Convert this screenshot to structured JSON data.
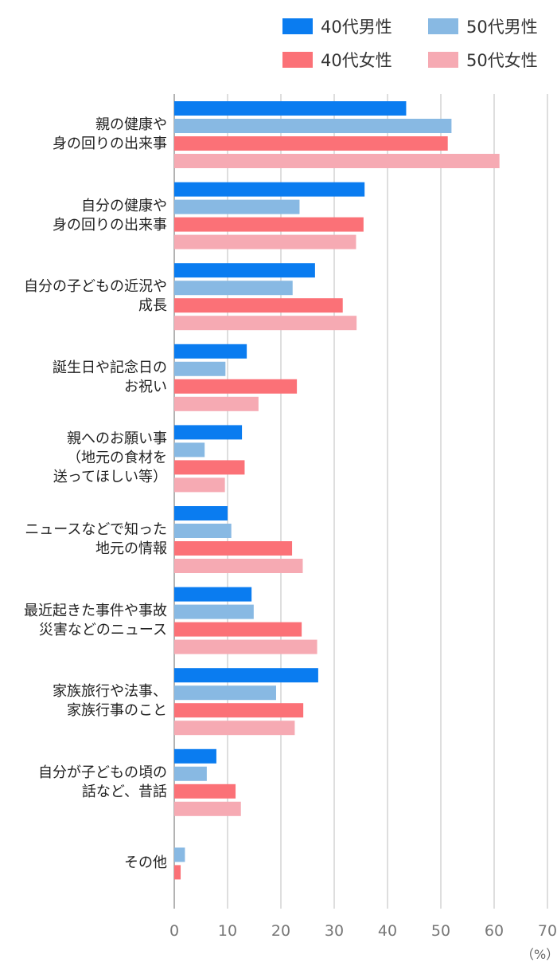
{
  "chart_data": {
    "type": "bar",
    "orientation": "horizontal",
    "categories": [
      [
        "親の健康や",
        "身の回りの出来事"
      ],
      [
        "自分の健康や",
        "身の回りの出来事"
      ],
      [
        "自分の子どもの近況や",
        "成長"
      ],
      [
        "誕生日や記念日の",
        "お祝い"
      ],
      [
        "親へのお願い事",
        "（地元の食材を",
        "送ってほしい等）"
      ],
      [
        "ニュースなどで知った",
        "地元の情報"
      ],
      [
        "最近起きた事件や事故",
        "災害などのニュース"
      ],
      [
        "家族旅行や法事、",
        "家族行事のこと"
      ],
      [
        "自分が子どもの頃の",
        "話など、昔話"
      ],
      [
        "その他"
      ]
    ],
    "series": [
      {
        "name": "40代男性",
        "color": "#0a7cf0",
        "values": [
          43.5,
          35.7,
          26.4,
          13.6,
          12.7,
          10.0,
          14.5,
          27.0,
          7.9,
          null
        ]
      },
      {
        "name": "50代男性",
        "color": "#88b9e3",
        "values": [
          52.0,
          23.5,
          22.2,
          9.6,
          5.7,
          10.7,
          14.9,
          19.1,
          6.1,
          2.0
        ]
      },
      {
        "name": "40代女性",
        "color": "#fb7177",
        "values": [
          51.3,
          35.5,
          31.6,
          23.0,
          13.2,
          22.1,
          23.9,
          24.2,
          11.5,
          1.2
        ]
      },
      {
        "name": "50代女性",
        "color": "#f6aab3",
        "values": [
          61.0,
          34.1,
          34.2,
          15.8,
          9.5,
          24.1,
          26.8,
          22.6,
          12.5,
          null
        ]
      }
    ],
    "xlim": [
      0,
      70
    ],
    "xticks": [
      0,
      10,
      20,
      30,
      40,
      50,
      60,
      70
    ],
    "x_unit": "（%）",
    "grid": "vertical",
    "legend_position": "top-right"
  }
}
